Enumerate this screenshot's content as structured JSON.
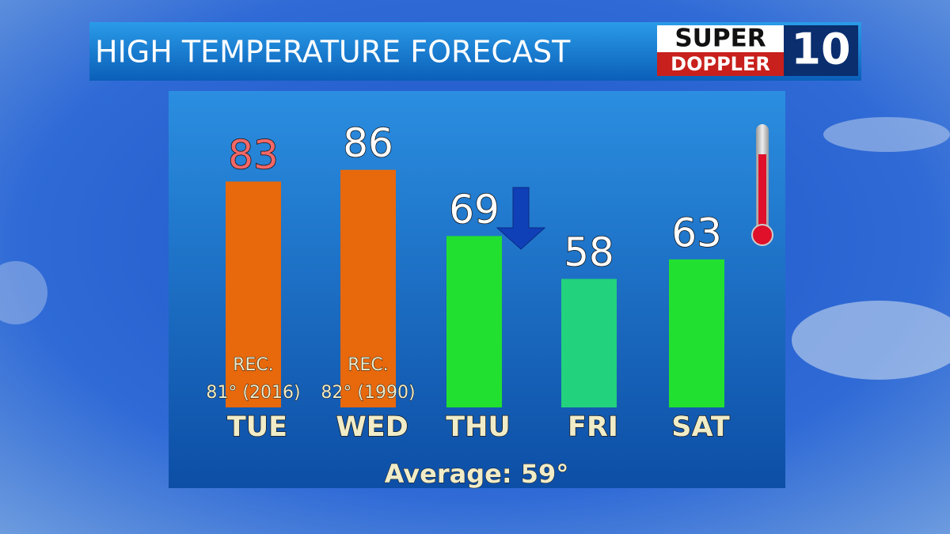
{
  "chart_data": {
    "type": "bar",
    "title": "HIGH TEMPERATURE FORECAST",
    "categories": [
      "TUE",
      "WED",
      "THU",
      "FRI",
      "SAT"
    ],
    "values": [
      83,
      86,
      69,
      58,
      63
    ],
    "colors": [
      "#e8680c",
      "#e8680c",
      "#22e030",
      "#22d27c",
      "#22e030"
    ],
    "label_colors": [
      "#f26868",
      "#ffffff",
      "#ffffff",
      "#ffffff",
      "#ffffff"
    ],
    "ylim": [
      25,
      90
    ],
    "annotations": [
      [
        "REC.",
        "81° (2016)"
      ],
      [
        "REC.",
        "82° (1990)"
      ]
    ],
    "footer": "Average: 59°"
  },
  "logo": {
    "top": "SUPER",
    "bottom": "DOPPLER",
    "number": "10"
  }
}
